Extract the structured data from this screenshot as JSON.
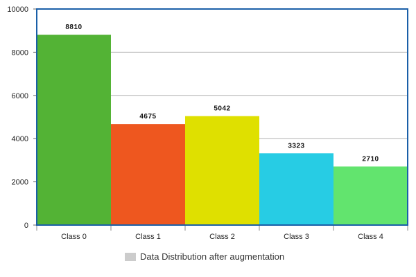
{
  "chart_data": {
    "type": "bar",
    "categories": [
      "Class 0",
      "Class 1",
      "Class 2",
      "Class 3",
      "Class 4"
    ],
    "values": [
      8810,
      4675,
      5042,
      3323,
      2710
    ],
    "data_labels": [
      "8810",
      "4675",
      "5042",
      "3323",
      "2710"
    ],
    "bar_colors": [
      "#53b335",
      "#ee571f",
      "#dfe000",
      "#27cce4",
      "#62e46e"
    ],
    "title": "",
    "xlabel": "",
    "ylabel": "",
    "ylim": [
      0,
      10000
    ],
    "yticks": [
      0,
      2000,
      4000,
      6000,
      8000,
      10000
    ],
    "ytick_labels": [
      "0",
      "2000",
      "4000",
      "6000",
      "8000",
      "10000"
    ],
    "grid": true,
    "legend": {
      "placement": "bottom",
      "label": "Data Distribution after augmentation",
      "swatch_color": "#cccccc"
    },
    "frame_color": "#1a5fa8",
    "grid_color": "#b0b0b0"
  }
}
